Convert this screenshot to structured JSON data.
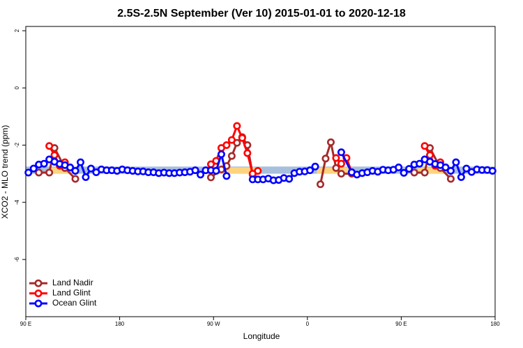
{
  "chart_data": {
    "type": "line",
    "title": "2.5S-2.5N September (Ver 10)   2015-01-01 to 2020-12-18",
    "xlabel": "Longitude",
    "ylabel": "XCO2 - MLO trend (ppm)",
    "xlim": [
      90,
      540
    ],
    "ylim": [
      -8,
      2.15
    ],
    "xticks": [
      {
        "value": 90,
        "label": "90 E"
      },
      {
        "value": 180,
        "label": "180"
      },
      {
        "value": 270,
        "label": "90 W"
      },
      {
        "value": 360,
        "label": "0"
      },
      {
        "value": 450,
        "label": "90 E"
      },
      {
        "value": 540,
        "label": "180"
      }
    ],
    "yticks": [
      2,
      0,
      -2,
      -4,
      -6
    ],
    "legend": "bottom-left",
    "bands": [
      {
        "color": "#a7bedd",
        "x": [
          90,
          540
        ],
        "y": [
          -3.0,
          -2.75
        ]
      },
      {
        "color": "#fdd47e",
        "x": [
          112,
          135
        ],
        "y": [
          -3.0,
          -2.78
        ]
      },
      {
        "color": "#fdd47e",
        "x": [
          279,
          316
        ],
        "y": [
          -3.0,
          -2.78
        ]
      },
      {
        "color": "#fdd47e",
        "x": [
          369,
          400
        ],
        "y": [
          -3.0,
          -2.78
        ]
      },
      {
        "color": "#fdd47e",
        "x": [
          466,
          493
        ],
        "y": [
          -3.0,
          -2.78
        ]
      }
    ],
    "series": [
      {
        "name": "Land Nadir",
        "color": "#a52a2a",
        "x": [
          102.5,
          112.5,
          117.5,
          127.5,
          137.5,
          142.5,
          267.5,
          277.5,
          282.5,
          287.5,
          292.5,
          297.5,
          302.5,
          307.5,
          312.5,
          372.5,
          377.5,
          382.5,
          387.5,
          392.5,
          402.5,
          407.5,
          462.5,
          472.5,
          477.5,
          487.5,
          497.5
        ],
        "values": [
          -2.96,
          -2.96,
          -2.1,
          -2.8,
          -3.18,
          null,
          -3.13,
          -2.85,
          -2.73,
          -2.38,
          -1.92,
          -1.72,
          -2.0,
          -3.03,
          null,
          -3.37,
          -2.47,
          -1.9,
          -2.8,
          -3.0,
          -3.0,
          null,
          -2.96,
          -2.96,
          -2.1,
          -2.8,
          -3.18
        ]
      },
      {
        "name": "Land Glint",
        "color": "#ff0000",
        "x": [
          112.5,
          117.5,
          122.5,
          127.5,
          132.5,
          137.5,
          267.5,
          272.5,
          277.5,
          282.5,
          287.5,
          292.5,
          297.5,
          302.5,
          307.5,
          312.5,
          317.5,
          387.5,
          392.5,
          397.5,
          402.5,
          407.5,
          472.5,
          477.5,
          482.5,
          487.5,
          492.5
        ],
        "values": [
          -2.03,
          -2.35,
          -2.72,
          -2.6,
          -2.78,
          null,
          -2.67,
          -2.55,
          -2.1,
          -2.0,
          -1.82,
          -1.33,
          -1.75,
          -2.28,
          -3.0,
          -2.9,
          null,
          -2.45,
          -2.65,
          -2.45,
          -2.95,
          null,
          -2.03,
          -2.35,
          -2.72,
          -2.6,
          -2.78
        ]
      },
      {
        "name": "Ocean Glint",
        "color": "#0000ff",
        "x": [
          92.5,
          97.5,
          102.5,
          107.5,
          112.5,
          117.5,
          122.5,
          127.5,
          132.5,
          137.5,
          142.5,
          147.5,
          152.5,
          157.5,
          162.5,
          167.5,
          172.5,
          177.5,
          182.5,
          187.5,
          192.5,
          197.5,
          202.5,
          207.5,
          212.5,
          217.5,
          222.5,
          227.5,
          232.5,
          237.5,
          242.5,
          247.5,
          252.5,
          257.5,
          262.5,
          267.5,
          272.5,
          277.5,
          282.5,
          292.5,
          307.5,
          312.5,
          317.5,
          322.5,
          327.5,
          332.5,
          337.5,
          342.5,
          347.5,
          352.5,
          357.5,
          362.5,
          367.5,
          377.5,
          392.5,
          402.5,
          407.5,
          412.5,
          417.5,
          422.5,
          427.5,
          432.5,
          437.5,
          442.5,
          447.5,
          452.5,
          457.5,
          462.5,
          467.5,
          472.5,
          477.5,
          482.5,
          487.5,
          492.5,
          497.5,
          502.5,
          507.5,
          512.5,
          517.5,
          522.5,
          527.5,
          532.5,
          537.5
        ],
        "values": [
          -2.96,
          -2.82,
          -2.68,
          -2.65,
          -2.5,
          -2.58,
          -2.66,
          -2.7,
          -2.78,
          -2.9,
          -2.6,
          -3.12,
          -2.82,
          -2.95,
          -2.85,
          -2.88,
          -2.88,
          -2.9,
          -2.85,
          -2.88,
          -2.9,
          -2.92,
          -2.92,
          -2.95,
          -2.95,
          -2.98,
          -2.96,
          -2.98,
          -2.98,
          -2.96,
          -2.95,
          -2.93,
          -2.88,
          -3.03,
          -2.88,
          -2.88,
          -2.9,
          -2.32,
          -3.08,
          null,
          -3.2,
          -3.2,
          -3.2,
          -3.17,
          -3.23,
          -3.22,
          -3.15,
          -3.18,
          -2.98,
          -2.93,
          -2.92,
          -2.88,
          -2.75,
          null,
          -2.25,
          -2.95,
          -3.03,
          -2.98,
          -2.95,
          -2.9,
          -2.93,
          -2.86,
          -2.88,
          -2.86,
          -2.78,
          -2.97,
          -2.83,
          -2.68,
          -2.65,
          -2.5,
          -2.58,
          -2.66,
          -2.7,
          -2.78,
          -2.9,
          -2.6,
          -3.12,
          -2.82,
          -2.94,
          -2.85,
          -2.87,
          -2.87,
          -2.9
        ]
      }
    ]
  }
}
